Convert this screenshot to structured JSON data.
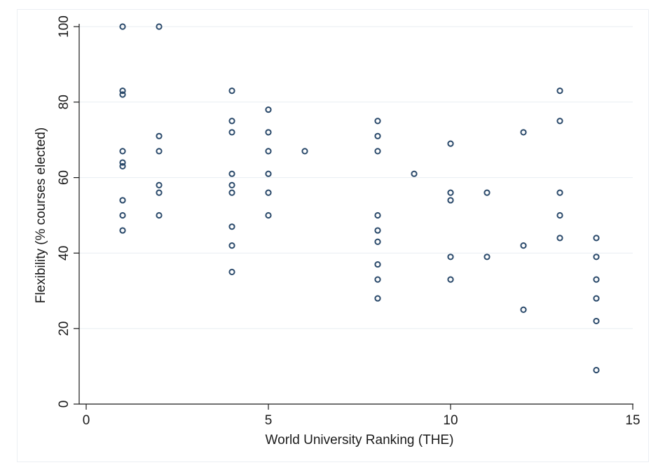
{
  "chart_data": {
    "type": "scatter",
    "title": "",
    "xlabel": "World University Ranking (THE)",
    "ylabel": "Flexibility (% courses elected)",
    "xlim": [
      0,
      15
    ],
    "ylim": [
      0,
      100
    ],
    "x_ticks": [
      0,
      5,
      10,
      15
    ],
    "y_ticks": [
      0,
      20,
      40,
      60,
      80,
      100
    ],
    "grid": "horizontal",
    "marker": "hollow-circle",
    "marker_color": "#2b4a6b",
    "series": [
      {
        "points": [
          [
            1,
            100
          ],
          [
            1,
            83
          ],
          [
            1,
            82
          ],
          [
            1,
            67
          ],
          [
            1,
            64
          ],
          [
            1,
            63
          ],
          [
            1,
            54
          ],
          [
            1,
            50
          ],
          [
            1,
            46
          ],
          [
            2,
            100
          ],
          [
            2,
            71
          ],
          [
            2,
            67
          ],
          [
            2,
            58
          ],
          [
            2,
            56
          ],
          [
            2,
            50
          ],
          [
            4,
            83
          ],
          [
            4,
            75
          ],
          [
            4,
            72
          ],
          [
            4,
            61
          ],
          [
            4,
            58
          ],
          [
            4,
            56
          ],
          [
            4,
            47
          ],
          [
            4,
            42
          ],
          [
            4,
            35
          ],
          [
            5,
            78
          ],
          [
            5,
            72
          ],
          [
            5,
            67
          ],
          [
            5,
            61
          ],
          [
            5,
            56
          ],
          [
            5,
            50
          ],
          [
            6,
            67
          ],
          [
            8,
            75
          ],
          [
            8,
            71
          ],
          [
            8,
            67
          ],
          [
            8,
            50
          ],
          [
            8,
            46
          ],
          [
            8,
            43
          ],
          [
            8,
            37
          ],
          [
            8,
            33
          ],
          [
            8,
            28
          ],
          [
            9,
            61
          ],
          [
            10,
            69
          ],
          [
            10,
            56
          ],
          [
            10,
            54
          ],
          [
            10,
            39
          ],
          [
            10,
            33
          ],
          [
            11,
            56
          ],
          [
            11,
            39
          ],
          [
            12,
            72
          ],
          [
            12,
            42
          ],
          [
            12,
            25
          ],
          [
            13,
            83
          ],
          [
            13,
            75
          ],
          [
            13,
            56
          ],
          [
            13,
            50
          ],
          [
            13,
            44
          ],
          [
            14,
            44
          ],
          [
            14,
            39
          ],
          [
            14,
            33
          ],
          [
            14,
            28
          ],
          [
            14,
            22
          ],
          [
            14,
            9
          ]
        ]
      }
    ]
  }
}
